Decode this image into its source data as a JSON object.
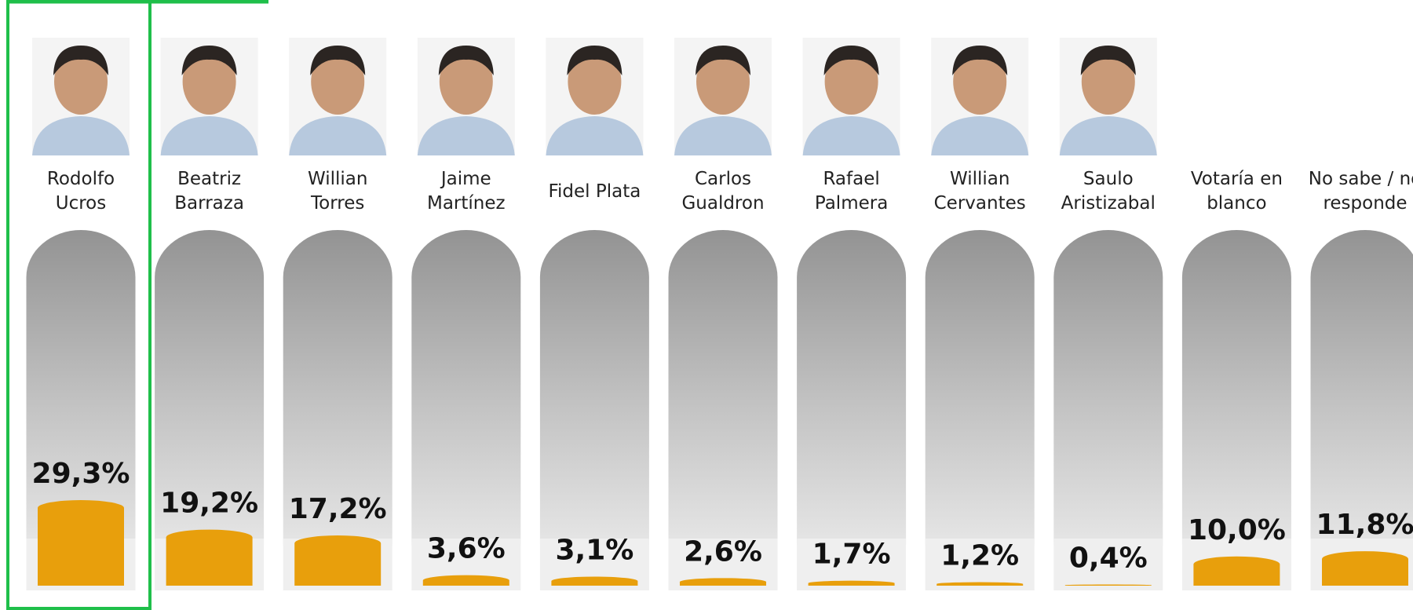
{
  "chart_data": {
    "type": "bar",
    "categories": [
      "Rodolfo Ucros",
      "Beatriz Barraza",
      "Willian Torres",
      "Jaime Martínez",
      "Fidel Plata",
      "Carlos Gualdron",
      "Rafael Palmera",
      "Willian Cervantes",
      "Saulo Aristizabal",
      "Votaría en blanco",
      "No sabe / no responde"
    ],
    "values": [
      29.3,
      19.2,
      17.2,
      3.6,
      3.1,
      2.6,
      1.7,
      1.2,
      0.4,
      10.0,
      11.8
    ],
    "value_labels": [
      "29,3%",
      "19,2%",
      "17,2%",
      "3,6%",
      "3,1%",
      "2,6%",
      "1,7%",
      "1,2%",
      "0,4%",
      "10,0%",
      "11,8%"
    ],
    "color": "#e89f0c"
  }
}
